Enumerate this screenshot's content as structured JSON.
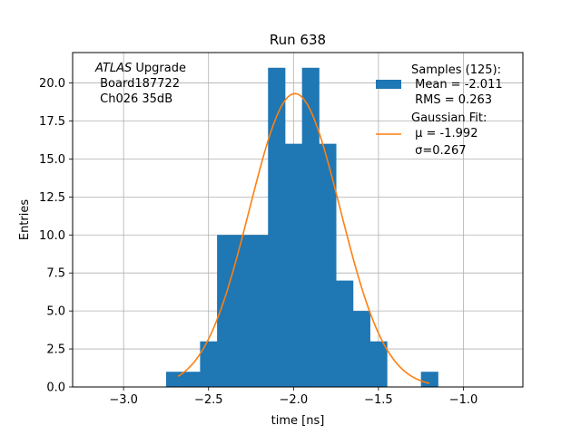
{
  "chart_data": {
    "type": "bar",
    "title": "Run 638",
    "xlabel": "time [ns]",
    "ylabel": "Entries",
    "xlim": [
      -3.3,
      -0.65
    ],
    "ylim": [
      0,
      22
    ],
    "xticks": [
      -3.0,
      -2.5,
      -2.0,
      -1.5,
      -1.0
    ],
    "xtick_labels": [
      "−3.0",
      "−2.5",
      "−2.0",
      "−1.5",
      "−1.0"
    ],
    "yticks": [
      0,
      2.5,
      5,
      7.5,
      10,
      12.5,
      15,
      17.5,
      20
    ],
    "ytick_labels": [
      "0.0",
      "2.5",
      "5.0",
      "7.5",
      "10.0",
      "12.5",
      "15.0",
      "17.5",
      "20.0"
    ],
    "grid": true,
    "histogram": {
      "bin_edges": [
        -2.75,
        -2.65,
        -2.55,
        -2.45,
        -2.35,
        -2.25,
        -2.15,
        -2.05,
        -1.95,
        -1.85,
        -1.75,
        -1.65,
        -1.55,
        -1.45,
        -1.35,
        -1.25,
        -1.15
      ],
      "counts": [
        1,
        1,
        3,
        10,
        10,
        10,
        21,
        16,
        21,
        16,
        7,
        5,
        3,
        0,
        0,
        1
      ],
      "color": "#1f77b4"
    },
    "fit": {
      "type": "gaussian",
      "mu": -1.992,
      "sigma": 0.267,
      "amplitude": 19.3,
      "x_range": [
        -2.68,
        -1.2
      ],
      "color": "#ff7f0e"
    },
    "legend": {
      "placement": "top-right",
      "entries": [
        {
          "kind": "patch",
          "lines": [
            "Samples (125):",
            " Mean = -2.011",
            " RMS = 0.263"
          ]
        },
        {
          "kind": "line",
          "lines": [
            "Gaussian Fit:",
            " μ = -1.992",
            " σ=0.267"
          ]
        }
      ]
    },
    "annotation": {
      "italic": "ATLAS",
      "rest": " Upgrade",
      "lines": [
        " Board187722",
        " Ch026 35dB"
      ]
    }
  }
}
